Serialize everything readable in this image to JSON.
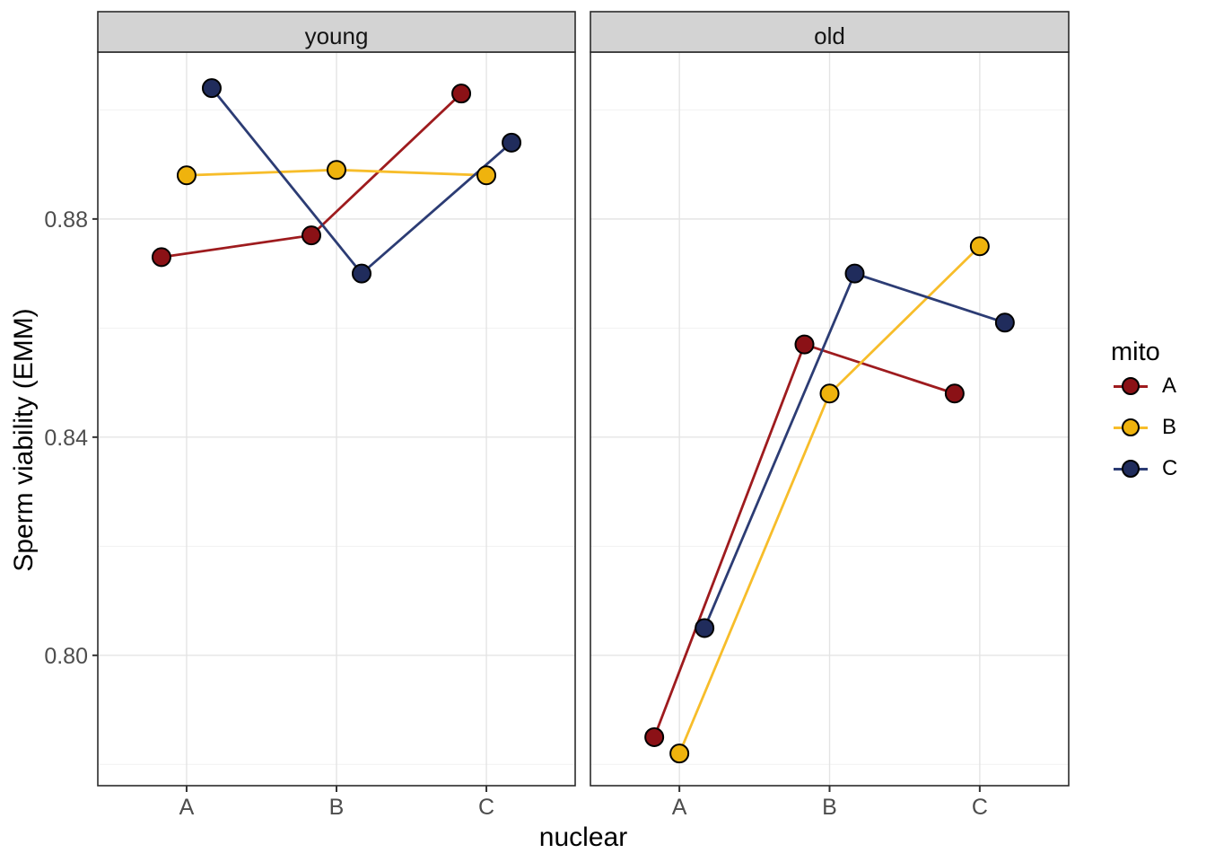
{
  "chart_data": {
    "type": "line",
    "title": "",
    "xlabel": "nuclear",
    "ylabel": "Sperm viability (EMM)",
    "legend_title": "mito",
    "legend_position": "right",
    "categories": [
      "A",
      "B",
      "C"
    ],
    "facets": [
      {
        "label": "young",
        "series": [
          {
            "name": "A",
            "values": [
              0.873,
              0.877,
              0.903
            ]
          },
          {
            "name": "B",
            "values": [
              0.888,
              0.889,
              0.888
            ]
          },
          {
            "name": "C",
            "values": [
              0.904,
              0.87,
              0.894
            ]
          }
        ]
      },
      {
        "label": "old",
        "series": [
          {
            "name": "A",
            "values": [
              0.785,
              0.857,
              0.848
            ]
          },
          {
            "name": "B",
            "values": [
              0.782,
              0.848,
              0.875
            ]
          },
          {
            "name": "C",
            "values": [
              0.805,
              0.87,
              0.861
            ]
          }
        ]
      }
    ],
    "y_ticks": [
      {
        "value": 0.88,
        "label": "0.88"
      },
      {
        "value": 0.84,
        "label": "0.84"
      },
      {
        "value": 0.8,
        "label": "0.80"
      }
    ],
    "y_minor": [
      0.9,
      0.86,
      0.82,
      0.78
    ],
    "ylim": [
      0.7761,
      0.9106
    ],
    "grid": "horizontal major+minor, vertical major at categories",
    "palette": {
      "A": {
        "line": "#9E1B1E",
        "fill": "#8B1116"
      },
      "B": {
        "line": "#F7BD2A",
        "fill": "#EFB30D"
      },
      "C": {
        "line": "#2C3C74",
        "fill": "#202C5C"
      }
    },
    "colors": {
      "grid_major": "#E4E4E4",
      "grid_minor": "#F1F1F1",
      "panel_border": "#2B2B2B",
      "strip_fill": "#D3D3D3",
      "strip_text": "#141414",
      "axis_text": "#4D4D4D",
      "tick_mark": "#333333",
      "point_stroke": "#000000",
      "background": "#FFFFFF"
    }
  },
  "legend": {
    "entries": [
      {
        "label": "A"
      },
      {
        "label": "B"
      },
      {
        "label": "C"
      }
    ]
  }
}
